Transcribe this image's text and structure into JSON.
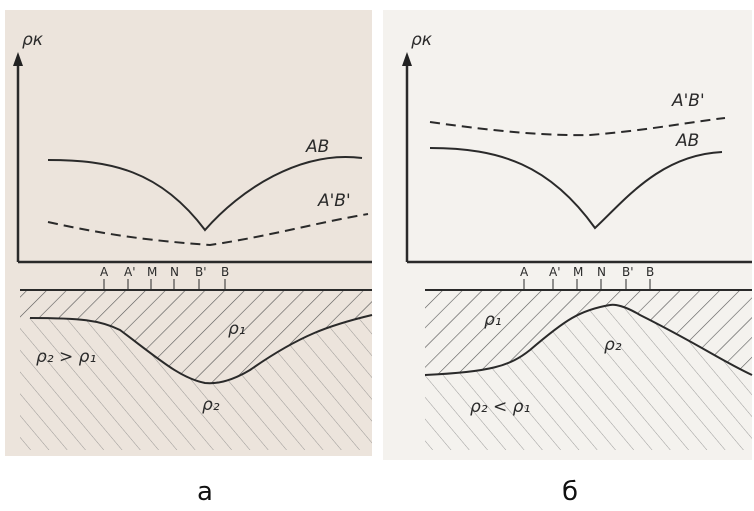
{
  "panels": [
    {
      "axis_label": "ρк",
      "curve_solid": "AB",
      "curve_dashed": "A'B'",
      "electrodes": [
        "A",
        "A'",
        "M",
        "N",
        "B'",
        "B"
      ],
      "upper_layer": "ρ₁",
      "lower_layer": "ρ₂",
      "relation": "ρ₂ > ρ₁",
      "caption": "а"
    },
    {
      "axis_label": "ρк",
      "curve_solid": "AB",
      "curve_dashed": "A'B'",
      "electrodes": [
        "A",
        "A'",
        "M",
        "N",
        "B'",
        "B"
      ],
      "upper_layer": "ρ₁",
      "lower_layer": "ρ₂",
      "relation": "ρ₂ < ρ₁",
      "caption": "б"
    }
  ]
}
